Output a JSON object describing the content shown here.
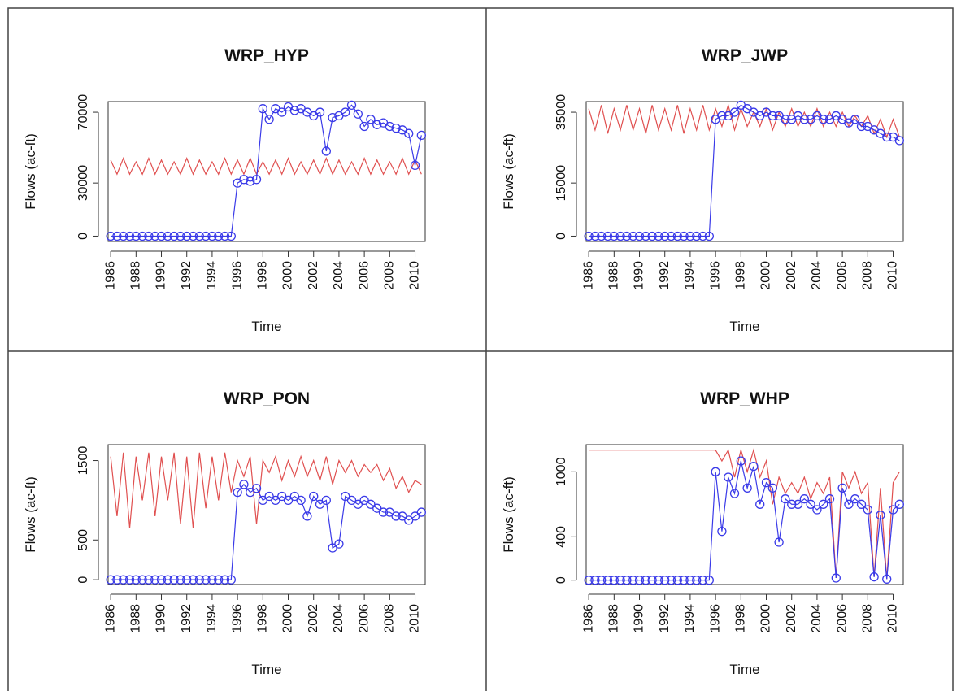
{
  "chart_data": [
    {
      "type": "line",
      "title": "WRP_HYP",
      "x_label": "Time",
      "y_label": "Flows (ac-ft)",
      "x": [
        1986,
        1986.5,
        1987,
        1987.5,
        1988,
        1988.5,
        1989,
        1989.5,
        1990,
        1990.5,
        1991,
        1991.5,
        1992,
        1992.5,
        1993,
        1993.5,
        1994,
        1994.5,
        1995,
        1995.5,
        1996,
        1996.5,
        1997,
        1997.5,
        1998,
        1998.5,
        1999,
        1999.5,
        2000,
        2000.5,
        2001,
        2001.5,
        2002,
        2002.5,
        2003,
        2003.5,
        2004,
        2004.5,
        2005,
        2005.5,
        2006,
        2006.5,
        2007,
        2007.5,
        2008,
        2008.5,
        2009,
        2009.5,
        2010,
        2010.5
      ],
      "xlim": [
        1985.8,
        2010.8
      ],
      "xticks": [
        1986,
        1988,
        1990,
        1992,
        1994,
        1996,
        1998,
        2000,
        2002,
        2004,
        2006,
        2008,
        2010
      ],
      "ylim": [
        -3000,
        76000
      ],
      "yticks": [
        0,
        30000,
        70000
      ],
      "series": [
        {
          "color": "#e05050",
          "values": [
            43000,
            35000,
            44000,
            35000,
            42000,
            35000,
            44000,
            35000,
            43000,
            35000,
            42000,
            35000,
            44000,
            35000,
            43000,
            35000,
            42000,
            35000,
            44000,
            35000,
            43000,
            35000,
            44000,
            35000,
            42000,
            35000,
            43000,
            35000,
            44000,
            35000,
            42000,
            35000,
            43000,
            35000,
            44000,
            35000,
            43000,
            35000,
            42000,
            35000,
            44000,
            35000,
            43000,
            35000,
            42000,
            35000,
            44000,
            35000,
            43000,
            35000
          ]
        },
        {
          "color": "#3a3ae8",
          "markers": true,
          "values": [
            0,
            0,
            0,
            0,
            0,
            0,
            0,
            0,
            0,
            0,
            0,
            0,
            0,
            0,
            0,
            0,
            0,
            0,
            0,
            0,
            30000,
            32000,
            31000,
            32000,
            72000,
            66000,
            72000,
            70000,
            73000,
            71000,
            72000,
            70000,
            68000,
            70000,
            48000,
            67000,
            68000,
            70000,
            74000,
            69000,
            62000,
            66000,
            63000,
            64000,
            62000,
            61000,
            60000,
            58000,
            40000,
            57000
          ]
        }
      ]
    },
    {
      "type": "line",
      "title": "WRP_JWP",
      "x_label": "Time",
      "y_label": "Flows (ac-ft)",
      "x": [
        1986,
        1986.5,
        1987,
        1987.5,
        1988,
        1988.5,
        1989,
        1989.5,
        1990,
        1990.5,
        1991,
        1991.5,
        1992,
        1992.5,
        1993,
        1993.5,
        1994,
        1994.5,
        1995,
        1995.5,
        1996,
        1996.5,
        1997,
        1997.5,
        1998,
        1998.5,
        1999,
        1999.5,
        2000,
        2000.5,
        2001,
        2001.5,
        2002,
        2002.5,
        2003,
        2003.5,
        2004,
        2004.5,
        2005,
        2005.5,
        2006,
        2006.5,
        2007,
        2007.5,
        2008,
        2008.5,
        2009,
        2009.5,
        2010,
        2010.5
      ],
      "xlim": [
        1985.8,
        2010.8
      ],
      "xticks": [
        1986,
        1988,
        1990,
        1992,
        1994,
        1996,
        1998,
        2000,
        2002,
        2004,
        2006,
        2008,
        2010
      ],
      "ylim": [
        -1500,
        38000
      ],
      "yticks": [
        0,
        15000,
        35000
      ],
      "series": [
        {
          "color": "#e05050",
          "values": [
            36000,
            30000,
            37000,
            29000,
            36000,
            30000,
            37000,
            30000,
            36000,
            29000,
            37000,
            30000,
            36000,
            30000,
            37000,
            29000,
            36000,
            30000,
            37000,
            30000,
            36000,
            31000,
            37000,
            30000,
            36000,
            31000,
            35000,
            31000,
            36000,
            30000,
            35000,
            31000,
            36000,
            31000,
            35000,
            31000,
            36000,
            31000,
            35000,
            31000,
            35000,
            31000,
            34000,
            31000,
            34000,
            29000,
            33000,
            28000,
            33000,
            28000
          ]
        },
        {
          "color": "#3a3ae8",
          "markers": true,
          "values": [
            0,
            0,
            0,
            0,
            0,
            0,
            0,
            0,
            0,
            0,
            0,
            0,
            0,
            0,
            0,
            0,
            0,
            0,
            0,
            0,
            33000,
            34000,
            34000,
            35000,
            37000,
            36000,
            35000,
            34000,
            35000,
            34000,
            34000,
            33000,
            33000,
            34000,
            33000,
            33000,
            34000,
            33000,
            33000,
            34000,
            33000,
            32000,
            33000,
            31000,
            31000,
            30000,
            29000,
            28000,
            28000,
            27000
          ]
        }
      ]
    },
    {
      "type": "line",
      "title": "WRP_PON",
      "x_label": "Time",
      "y_label": "Flows (ac-ft)",
      "x": [
        1986,
        1986.5,
        1987,
        1987.5,
        1988,
        1988.5,
        1989,
        1989.5,
        1990,
        1990.5,
        1991,
        1991.5,
        1992,
        1992.5,
        1993,
        1993.5,
        1994,
        1994.5,
        1995,
        1995.5,
        1996,
        1996.5,
        1997,
        1997.5,
        1998,
        1998.5,
        1999,
        1999.5,
        2000,
        2000.5,
        2001,
        2001.5,
        2002,
        2002.5,
        2003,
        2003.5,
        2004,
        2004.5,
        2005,
        2005.5,
        2006,
        2006.5,
        2007,
        2007.5,
        2008,
        2008.5,
        2009,
        2009.5,
        2010,
        2010.5
      ],
      "xlim": [
        1985.8,
        2010.8
      ],
      "xticks": [
        1986,
        1988,
        1990,
        1992,
        1994,
        1996,
        1998,
        2000,
        2002,
        2004,
        2006,
        2008,
        2010
      ],
      "ylim": [
        -60,
        1700
      ],
      "yticks": [
        0,
        500,
        1500
      ],
      "series": [
        {
          "color": "#e05050",
          "values": [
            1550,
            800,
            1600,
            650,
            1550,
            1000,
            1600,
            800,
            1550,
            1000,
            1600,
            700,
            1550,
            650,
            1600,
            900,
            1550,
            1000,
            1600,
            1100,
            1500,
            1300,
            1550,
            700,
            1500,
            1350,
            1550,
            1250,
            1500,
            1300,
            1550,
            1300,
            1500,
            1250,
            1550,
            1200,
            1500,
            1350,
            1500,
            1300,
            1450,
            1350,
            1450,
            1250,
            1400,
            1150,
            1300,
            1100,
            1250,
            1200
          ]
        },
        {
          "color": "#3a3ae8",
          "markers": true,
          "values": [
            0,
            0,
            0,
            0,
            0,
            0,
            0,
            0,
            0,
            0,
            0,
            0,
            0,
            0,
            0,
            0,
            0,
            0,
            0,
            0,
            1100,
            1200,
            1100,
            1150,
            1000,
            1050,
            1000,
            1050,
            1000,
            1050,
            1000,
            800,
            1050,
            950,
            1000,
            400,
            450,
            1050,
            1000,
            950,
            1000,
            950,
            900,
            850,
            850,
            800,
            800,
            750,
            800,
            850
          ]
        }
      ]
    },
    {
      "type": "line",
      "title": "WRP_WHP",
      "x_label": "Time",
      "y_label": "Flows (ac-ft)",
      "x": [
        1986,
        1986.5,
        1987,
        1987.5,
        1988,
        1988.5,
        1989,
        1989.5,
        1990,
        1990.5,
        1991,
        1991.5,
        1992,
        1992.5,
        1993,
        1993.5,
        1994,
        1994.5,
        1995,
        1995.5,
        1996,
        1996.5,
        1997,
        1997.5,
        1998,
        1998.5,
        1999,
        1999.5,
        2000,
        2000.5,
        2001,
        2001.5,
        2002,
        2002.5,
        2003,
        2003.5,
        2004,
        2004.5,
        2005,
        2005.5,
        2006,
        2006.5,
        2007,
        2007.5,
        2008,
        2008.5,
        2009,
        2009.5,
        2010,
        2010.5
      ],
      "xlim": [
        1985.8,
        2010.8
      ],
      "xticks": [
        1986,
        1988,
        1990,
        1992,
        1994,
        1996,
        1998,
        2000,
        2002,
        2004,
        2006,
        2008,
        2010
      ],
      "ylim": [
        -40,
        1250
      ],
      "yticks": [
        0,
        400,
        1000
      ],
      "series": [
        {
          "color": "#e05050",
          "values": [
            1200,
            1200,
            1200,
            1200,
            1200,
            1200,
            1200,
            1200,
            1200,
            1200,
            1200,
            1200,
            1200,
            1200,
            1200,
            1200,
            1200,
            1200,
            1200,
            1200,
            1200,
            1100,
            1200,
            950,
            1200,
            1000,
            1200,
            950,
            1100,
            700,
            950,
            800,
            900,
            800,
            950,
            750,
            900,
            800,
            950,
            20,
            1000,
            850,
            1000,
            800,
            900,
            30,
            850,
            10,
            900,
            1000
          ]
        },
        {
          "color": "#3a3ae8",
          "markers": true,
          "values": [
            0,
            0,
            0,
            0,
            0,
            0,
            0,
            0,
            0,
            0,
            0,
            0,
            0,
            0,
            0,
            0,
            0,
            0,
            0,
            0,
            1000,
            450,
            950,
            800,
            1100,
            850,
            1050,
            700,
            900,
            850,
            350,
            750,
            700,
            700,
            750,
            700,
            650,
            700,
            750,
            20,
            850,
            700,
            750,
            700,
            650,
            30,
            600,
            10,
            650,
            700
          ]
        }
      ]
    }
  ]
}
